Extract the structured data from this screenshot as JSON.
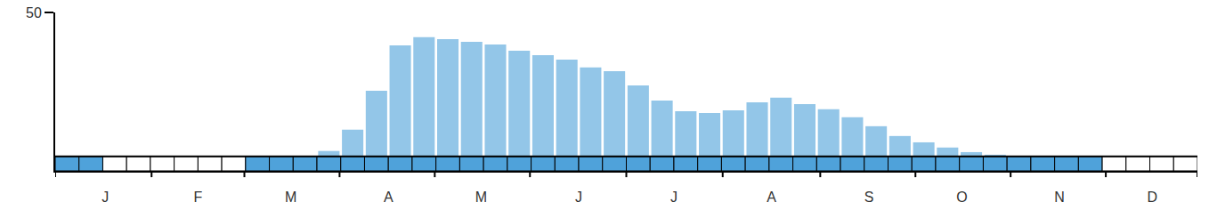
{
  "chart_data": {
    "type": "bar",
    "x": [
      0.5,
      1.5,
      2.5,
      3.5,
      4.5,
      5.5,
      6.5,
      7.5,
      8.5,
      9.5,
      10.5,
      11.5,
      12.5,
      13.5,
      14.5,
      15.5,
      16.5,
      17.5,
      18.5,
      19.5,
      20.5,
      21.5,
      22.5,
      23.5,
      24.5,
      25.5,
      26.5,
      27.5,
      28.5,
      29.5,
      30.5,
      31.5,
      32.5,
      33.5,
      34.5,
      35.5,
      36.5,
      37.5,
      38.5,
      39.5,
      40.5,
      41.5,
      42.5,
      43.5,
      44.5,
      45.5,
      46.5,
      47.5
    ],
    "values": [
      0,
      0,
      0,
      0,
      0,
      0,
      0,
      0,
      0,
      0,
      0,
      1.9,
      9.3,
      22.8,
      38.6,
      41.4,
      40.7,
      39.8,
      38.9,
      36.7,
      35.2,
      33.6,
      30.9,
      29.6,
      24.7,
      19.4,
      15.7,
      15.1,
      16,
      18.8,
      20.4,
      18.2,
      16.4,
      13.6,
      10.5,
      7.1,
      4.9,
      3.1,
      1.5,
      0.6,
      0,
      0,
      0,
      0,
      0,
      0,
      0,
      0
    ],
    "color": "#93c6e8",
    "presence": {
      "color": "#4fa2da",
      "values": [
        true,
        true,
        false,
        false,
        false,
        false,
        false,
        false,
        true,
        true,
        true,
        true,
        true,
        true,
        true,
        true,
        true,
        true,
        true,
        true,
        true,
        true,
        true,
        true,
        true,
        true,
        true,
        true,
        true,
        true,
        true,
        true,
        true,
        true,
        true,
        true,
        true,
        true,
        true,
        true,
        true,
        true,
        true,
        true,
        false,
        false,
        false,
        false
      ]
    },
    "xlim": [
      0,
      48
    ],
    "xticks": [
      {
        "value": 2.1,
        "label": "J"
      },
      {
        "value": 6.0,
        "label": "F"
      },
      {
        "value": 9.9,
        "label": "M"
      },
      {
        "value": 14.0,
        "label": "A"
      },
      {
        "value": 17.9,
        "label": "M"
      },
      {
        "value": 22.0,
        "label": "J"
      },
      {
        "value": 26.0,
        "label": "J"
      },
      {
        "value": 30.1,
        "label": "A"
      },
      {
        "value": 34.2,
        "label": "S"
      },
      {
        "value": 38.1,
        "label": "O"
      },
      {
        "value": 42.2,
        "label": "N"
      },
      {
        "value": 46.1,
        "label": "D"
      }
    ],
    "ylim": [
      -5,
      50
    ],
    "yticks": [
      50
    ],
    "grid": false
  }
}
